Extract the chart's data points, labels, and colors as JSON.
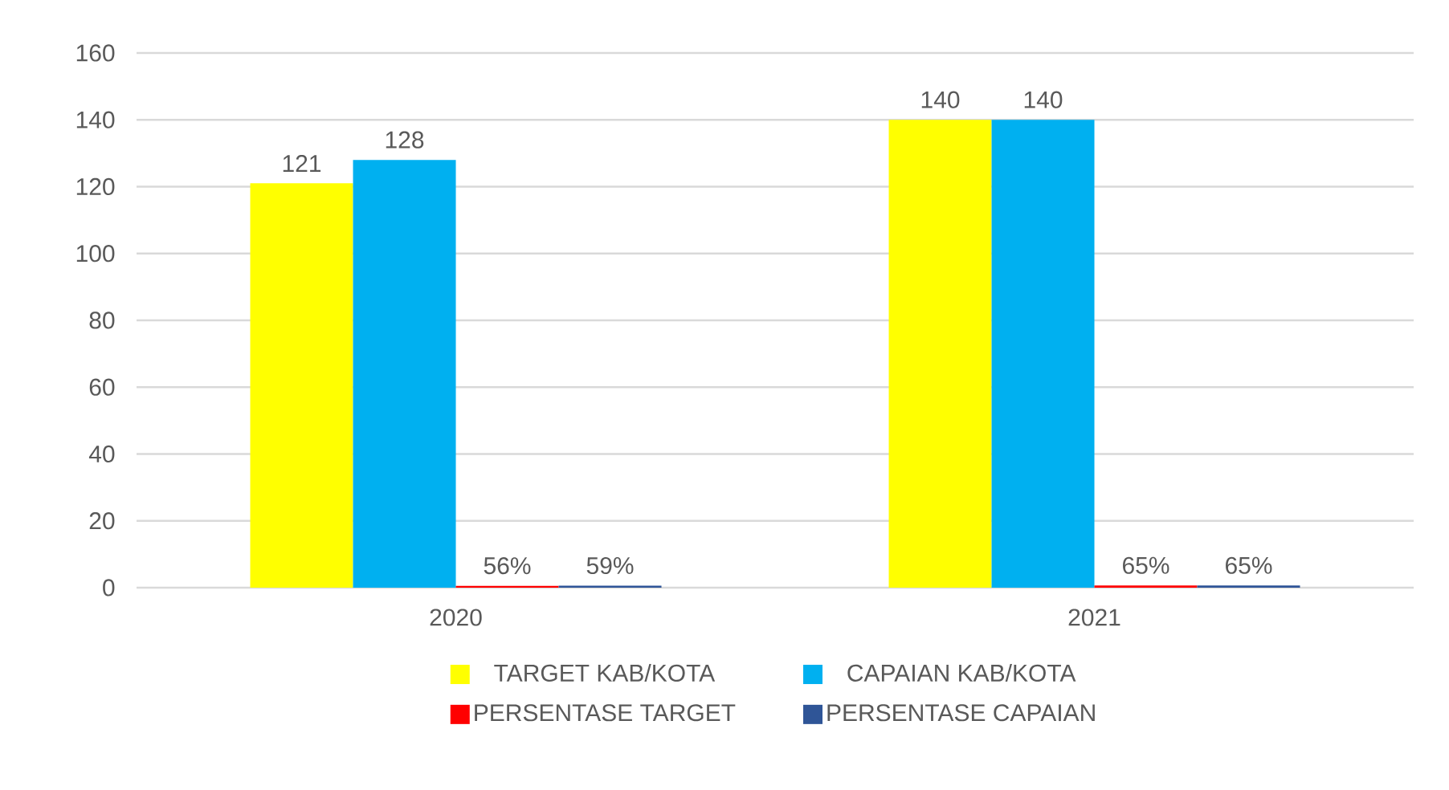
{
  "chart_data": {
    "type": "bar",
    "categories": [
      "2020",
      "2021"
    ],
    "series": [
      {
        "name": "TARGET KAB/KOTA",
        "color": "#ffff00",
        "values": [
          121,
          140
        ],
        "value_labels": [
          "121",
          "140"
        ]
      },
      {
        "name": "CAPAIAN KAB/KOTA",
        "color": "#00b0f0",
        "values": [
          128,
          140
        ],
        "value_labels": [
          "128",
          "140"
        ]
      },
      {
        "name": "PERSENTASE TARGET",
        "color": "#ff0000",
        "values": [
          0.56,
          0.65
        ],
        "value_labels": [
          "56%",
          "65%"
        ]
      },
      {
        "name": "PERSENTASE CAPAIAN",
        "color": "#2f5597",
        "values": [
          0.59,
          0.65
        ],
        "value_labels": [
          "59%",
          "65%"
        ]
      }
    ],
    "ylim": [
      0,
      160
    ],
    "yticks": [
      0,
      20,
      40,
      60,
      80,
      100,
      120,
      140,
      160
    ],
    "grid": "y",
    "legend": "bottom"
  }
}
